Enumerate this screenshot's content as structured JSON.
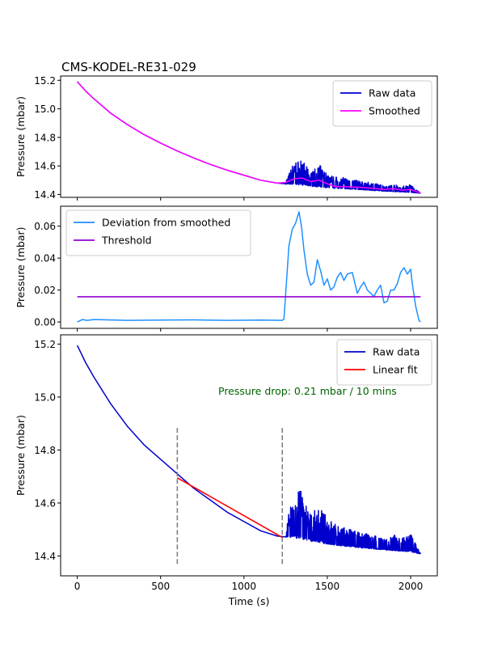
{
  "title": "CMS-KODEL-RE31-029",
  "colors": {
    "raw": "#0000cd",
    "smoothed": "#ff00ff",
    "deviation": "#1e90ff",
    "threshold": "#9400d3",
    "fit": "#ff0000",
    "annotation": "#006400",
    "marker": "#808080"
  },
  "chart_data": [
    {
      "type": "line",
      "ylabel": "Pressure (mbar)",
      "xlim": [
        -100,
        2160
      ],
      "ylim": [
        14.38,
        15.23
      ],
      "xticks": [
        0,
        500,
        1000,
        1500,
        2000
      ],
      "yticks": [
        14.4,
        14.6,
        14.8,
        15.0,
        15.2
      ],
      "ytick_labels": [
        "14.4",
        "14.6",
        "14.8",
        "15.0",
        "15.2"
      ],
      "legend": "top-right",
      "series": [
        {
          "name": "Raw data",
          "x": [
            0,
            50,
            100,
            200,
            300,
            400,
            500,
            600,
            700,
            800,
            900,
            1000,
            1100,
            1200,
            1250
          ],
          "values": [
            15.19,
            15.125,
            15.07,
            14.97,
            14.89,
            14.82,
            14.76,
            14.705,
            14.655,
            14.61,
            14.57,
            14.535,
            14.5,
            14.48,
            14.475
          ],
          "noisy_segment": {
            "x": [
              1250,
              1300,
              1350,
              1400,
              1450,
              1500,
              1550,
              1600,
              1700,
              1800,
              1850,
              1900,
              1950,
              2000,
              2060
            ],
            "baseline": [
              14.472,
              14.47,
              14.465,
              14.458,
              14.452,
              14.447,
              14.443,
              14.44,
              14.433,
              14.426,
              14.423,
              14.42,
              14.417,
              14.414,
              14.408
            ],
            "amplitude": [
              0.02,
              0.16,
              0.18,
              0.09,
              0.16,
              0.1,
              0.08,
              0.08,
              0.06,
              0.05,
              0.04,
              0.05,
              0.04,
              0.06,
              0.0
            ]
          }
        },
        {
          "name": "Smoothed",
          "x": [
            0,
            50,
            100,
            200,
            300,
            400,
            500,
            600,
            700,
            800,
            900,
            1000,
            1100,
            1200,
            1250,
            1300,
            1350,
            1400,
            1450,
            1500,
            1550,
            1600,
            1700,
            1800,
            1850,
            1900,
            1950,
            2000,
            2060
          ],
          "values": [
            15.19,
            15.125,
            15.07,
            14.97,
            14.89,
            14.82,
            14.76,
            14.705,
            14.655,
            14.61,
            14.57,
            14.535,
            14.5,
            14.48,
            14.485,
            14.51,
            14.515,
            14.49,
            14.5,
            14.475,
            14.455,
            14.455,
            14.45,
            14.44,
            14.435,
            14.44,
            14.43,
            14.435,
            14.41
          ]
        }
      ]
    },
    {
      "type": "line",
      "ylabel": "Pressure (mbar)",
      "xlim": [
        -100,
        2160
      ],
      "ylim": [
        -0.004,
        0.0725
      ],
      "xticks": [
        0,
        500,
        1000,
        1500,
        2000
      ],
      "yticks": [
        0.0,
        0.02,
        0.04,
        0.06
      ],
      "ytick_labels": [
        "0.00",
        "0.02",
        "0.04",
        "0.06"
      ],
      "legend": "top-left",
      "series": [
        {
          "name": "Deviation from smoothed",
          "x": [
            0,
            30,
            60,
            100,
            300,
            500,
            700,
            900,
            1100,
            1230,
            1240,
            1255,
            1270,
            1290,
            1310,
            1330,
            1345,
            1360,
            1380,
            1400,
            1420,
            1440,
            1460,
            1480,
            1500,
            1520,
            1540,
            1560,
            1580,
            1600,
            1620,
            1650,
            1680,
            1700,
            1720,
            1740,
            1760,
            1780,
            1800,
            1820,
            1840,
            1860,
            1880,
            1900,
            1920,
            1940,
            1960,
            1980,
            2000,
            2010,
            2030,
            2050,
            2060
          ],
          "values": [
            0.0,
            0.0015,
            0.001,
            0.0015,
            0.001,
            0.0012,
            0.0013,
            0.001,
            0.0012,
            0.001,
            0.002,
            0.025,
            0.048,
            0.058,
            0.062,
            0.069,
            0.06,
            0.045,
            0.03,
            0.023,
            0.025,
            0.039,
            0.032,
            0.023,
            0.027,
            0.02,
            0.022,
            0.028,
            0.031,
            0.026,
            0.03,
            0.031,
            0.018,
            0.022,
            0.025,
            0.02,
            0.018,
            0.016,
            0.02,
            0.023,
            0.012,
            0.013,
            0.02,
            0.02,
            0.024,
            0.031,
            0.034,
            0.03,
            0.033,
            0.024,
            0.01,
            0.001,
            0.0
          ]
        },
        {
          "name": "Threshold",
          "x": [
            0,
            2060
          ],
          "values": [
            0.0158,
            0.0158
          ]
        }
      ]
    },
    {
      "type": "line",
      "xlabel": "Time (s)",
      "ylabel": "Pressure (mbar)",
      "xlim": [
        -100,
        2160
      ],
      "ylim": [
        14.325,
        15.235
      ],
      "xticks": [
        0,
        500,
        1000,
        1500,
        2000
      ],
      "xtick_labels": [
        "0",
        "500",
        "1000",
        "1500",
        "2000"
      ],
      "yticks": [
        14.4,
        14.6,
        14.8,
        15.0,
        15.2
      ],
      "ytick_labels": [
        "14.4",
        "14.6",
        "14.8",
        "15.0",
        "15.2"
      ],
      "legend": "top-right",
      "annotation": "Pressure drop: 0.21 mbar / 10 mins",
      "markers_x": [
        600,
        1230
      ],
      "markers_y": [
        14.37,
        14.89
      ],
      "series": [
        {
          "name": "Raw data",
          "x": [
            0,
            50,
            100,
            200,
            300,
            400,
            500,
            600,
            700,
            800,
            900,
            1000,
            1100,
            1200,
            1250
          ],
          "values": [
            15.195,
            15.13,
            15.075,
            14.975,
            14.89,
            14.82,
            14.765,
            14.71,
            14.655,
            14.61,
            14.565,
            14.53,
            14.495,
            14.475,
            14.472
          ],
          "noisy_segment": {
            "x": [
              1250,
              1300,
              1350,
              1400,
              1450,
              1500,
              1550,
              1600,
              1700,
              1800,
              1850,
              1900,
              1950,
              2000,
              2060
            ],
            "baseline": [
              14.472,
              14.468,
              14.462,
              14.455,
              14.45,
              14.445,
              14.44,
              14.437,
              14.43,
              14.425,
              14.422,
              14.42,
              14.418,
              14.415,
              14.408
            ],
            "amplitude": [
              0.03,
              0.19,
              0.18,
              0.1,
              0.14,
              0.1,
              0.08,
              0.07,
              0.06,
              0.05,
              0.04,
              0.06,
              0.05,
              0.07,
              0.0
            ]
          }
        },
        {
          "name": "Linear fit",
          "x": [
            600,
            1230
          ],
          "values": [
            14.695,
            14.47
          ]
        }
      ]
    }
  ]
}
